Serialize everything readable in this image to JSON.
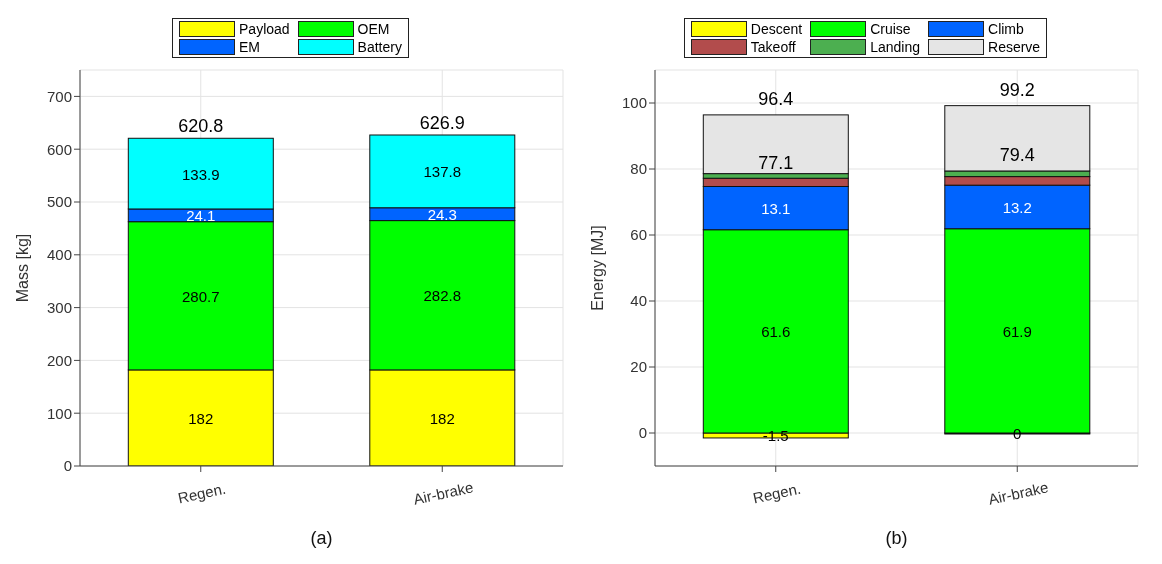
{
  "chart_data": [
    {
      "type": "bar",
      "stacked": true,
      "xlabel": "(a)",
      "ylabel": "Mass [kg]",
      "categories": [
        "Regen.",
        "Air-brake"
      ],
      "ylim": [
        0,
        750
      ],
      "yticks": [
        0,
        100,
        200,
        300,
        400,
        500,
        600,
        700
      ],
      "grid": true,
      "legend": "top",
      "data_labels": true,
      "totals": [
        "620.8",
        "626.9"
      ],
      "series": [
        {
          "name": "Payload",
          "color": "#ffff00",
          "values": [
            182,
            182
          ]
        },
        {
          "name": "OEM",
          "color": "#00ff00",
          "values": [
            280.7,
            282.8
          ]
        },
        {
          "name": "EM",
          "color": "#0064ff",
          "values": [
            24.1,
            24.3
          ]
        },
        {
          "name": "Battery",
          "color": "#00ffff",
          "values": [
            133.9,
            137.8
          ]
        }
      ]
    },
    {
      "type": "bar",
      "stacked": true,
      "xlabel": "(b)",
      "ylabel": "Energy [MJ]",
      "categories": [
        "Regen.",
        "Air-brake"
      ],
      "ylim": [
        -10,
        110
      ],
      "yticks": [
        0,
        20,
        40,
        60,
        80,
        100
      ],
      "grid": true,
      "legend": "top",
      "annotations": [
        {
          "text": "96.4",
          "x": "Regen.",
          "y": 96.4
        },
        {
          "text": "99.2",
          "x": "Air-brake",
          "y": 99.2
        },
        {
          "text": "77.1",
          "x": "Regen.",
          "y": 77.1
        },
        {
          "text": "79.4",
          "x": "Air-brake",
          "y": 79.4
        }
      ],
      "series": [
        {
          "name": "Descent",
          "color": "#ffff00",
          "values": [
            -1.5,
            0
          ],
          "value_labels": [
            "-1.5",
            "0"
          ]
        },
        {
          "name": "Cruise",
          "color": "#00ff00",
          "values": [
            61.6,
            61.9
          ],
          "value_labels": [
            "61.6",
            "61.9"
          ]
        },
        {
          "name": "Climb",
          "color": "#0064ff",
          "values": [
            13.1,
            13.2
          ],
          "value_labels": [
            "13.1",
            "13.2"
          ]
        },
        {
          "name": "Takeoff",
          "color": "#b24c4c",
          "values": [
            2.5,
            2.6
          ]
        },
        {
          "name": "Landing",
          "color": "#4caf50",
          "values": [
            1.4,
            1.7
          ]
        },
        {
          "name": "Reserve",
          "color": "#e5e5e5",
          "values": [
            17.8,
            19.8
          ]
        }
      ]
    }
  ]
}
